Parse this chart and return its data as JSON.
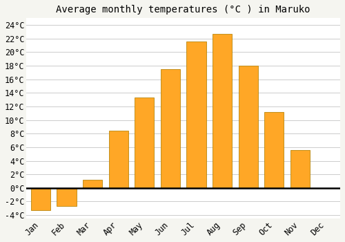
{
  "title": "Average monthly temperatures (°C ) in Maruko",
  "months": [
    "Jan",
    "Feb",
    "Mar",
    "Apr",
    "May",
    "Jun",
    "Jul",
    "Aug",
    "Sep",
    "Oct",
    "Nov",
    "Dec"
  ],
  "values": [
    -3.3,
    -2.7,
    1.2,
    8.4,
    13.3,
    17.5,
    21.6,
    22.7,
    18.0,
    11.2,
    5.6,
    0.0
  ],
  "bar_color": "#FFA726",
  "bar_edge_color": "#B8860B",
  "bg_color": "#F5F5F0",
  "plot_bg_color": "#FFFFFF",
  "grid_color": "#CCCCCC",
  "ylim_min": -4.5,
  "ylim_max": 25.0,
  "yticks": [
    -4,
    -2,
    0,
    2,
    4,
    6,
    8,
    10,
    12,
    14,
    16,
    18,
    20,
    22,
    24
  ],
  "title_fontsize": 10,
  "tick_fontsize": 8.5,
  "bar_width": 0.75
}
